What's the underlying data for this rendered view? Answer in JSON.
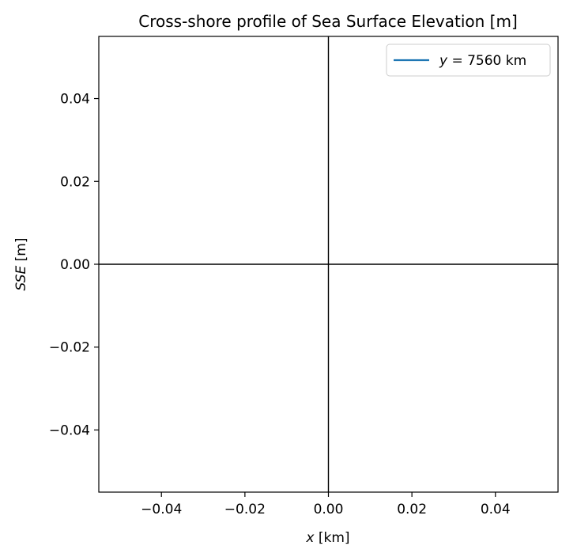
{
  "chart_data": {
    "type": "line",
    "title": "Cross-shore profile of Sea Surface Elevation [m]",
    "xlabel_var": "x",
    "xlabel_unit": " [km]",
    "ylabel_var": "SSE",
    "ylabel_unit": " [m]",
    "xlim": [
      -0.055,
      0.055
    ],
    "ylim": [
      -0.055,
      0.055
    ],
    "xticks": [
      -0.04,
      -0.02,
      0.0,
      0.02,
      0.04
    ],
    "yticks": [
      -0.04,
      -0.02,
      0.0,
      0.02,
      0.04
    ],
    "xtick_labels": [
      "−0.04",
      "−0.02",
      "0.00",
      "0.02",
      "0.04"
    ],
    "ytick_labels": [
      "−0.04",
      "−0.02",
      "0.00",
      "0.02",
      "0.04"
    ],
    "reference_lines": [
      {
        "orientation": "vertical",
        "value": 0,
        "color": "#000000"
      },
      {
        "orientation": "horizontal",
        "value": 0,
        "color": "#000000"
      }
    ],
    "series": [
      {
        "name_var": "y",
        "name_rest": " = 7560 km",
        "color": "#1f77b4",
        "x": [],
        "y": []
      }
    ],
    "legend": "top-right",
    "grid": false
  }
}
